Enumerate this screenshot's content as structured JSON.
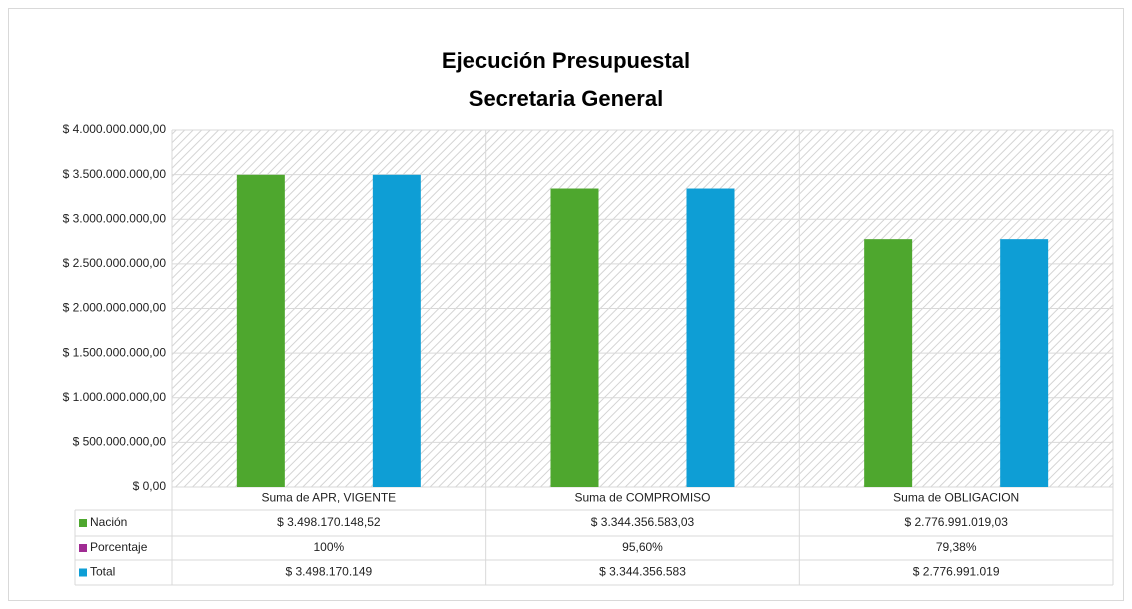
{
  "chart_data": {
    "type": "bar",
    "title": "Ejecución Presupuestal",
    "subtitle": "Secretaria General",
    "categories": [
      "Suma de APR, VIGENTE",
      "Suma de COMPROMISO",
      "Suma de OBLIGACION"
    ],
    "series": [
      {
        "name": "Nación",
        "color": "#4ea72e",
        "values": [
          3498170148.52,
          3344356583.03,
          2776991019.03
        ],
        "value_labels": [
          "$ 3.498.170.148,52",
          "$ 3.344.356.583,03",
          "$ 2.776.991.019,03"
        ]
      },
      {
        "name": "Porcentaje",
        "color": "#a02b93",
        "values": [
          100,
          95.6,
          79.38
        ],
        "value_labels": [
          "100%",
          "95,60%",
          "79,38%"
        ]
      },
      {
        "name": "Total",
        "color": "#0e9ed5",
        "values": [
          3498170149,
          3344356583,
          2776991019
        ],
        "value_labels": [
          "$ 3.498.170.149",
          "$ 3.344.356.583",
          "$ 2.776.991.019"
        ]
      }
    ],
    "ylim": [
      0,
      4000000000
    ],
    "yticks": [
      {
        "value": 0,
        "label": "$ 0,00"
      },
      {
        "value": 500000000,
        "label": "$ 500.000.000,00"
      },
      {
        "value": 1000000000,
        "label": "$ 1.000.000.000,00"
      },
      {
        "value": 1500000000,
        "label": "$ 1.500.000.000,00"
      },
      {
        "value": 2000000000,
        "label": "$ 2.000.000.000,00"
      },
      {
        "value": 2500000000,
        "label": "$ 2.500.000.000,00"
      },
      {
        "value": 3000000000,
        "label": "$ 3.000.000.000,00"
      },
      {
        "value": 3500000000,
        "label": "$ 3.500.000.000,00"
      },
      {
        "value": 4000000000,
        "label": "$ 4.000.000.000,00"
      }
    ],
    "grid": true,
    "data_table": true
  }
}
